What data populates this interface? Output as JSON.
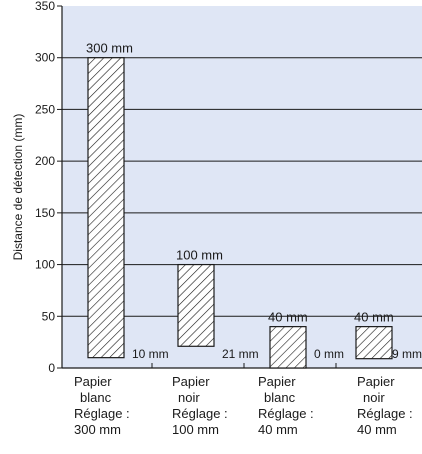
{
  "chart_data": {
    "type": "bar",
    "title": "",
    "ylabel": "Distance de détection (mm)",
    "xlabel": "",
    "ylim": [
      0,
      350
    ],
    "yticks": [
      0,
      50,
      100,
      150,
      200,
      250,
      300,
      350
    ],
    "grid": true,
    "categories": [
      [
        "Papier",
        "blanc",
        "Réglage :",
        "300 mm"
      ],
      [
        "Papier",
        "noir",
        "Réglage :",
        "100 mm"
      ],
      [
        "Papier",
        "blanc",
        "Réglage :",
        "40 mm"
      ],
      [
        "Papier",
        "noir",
        "Réglage :",
        "40 mm"
      ]
    ],
    "bars": [
      {
        "min": 10,
        "max": 300,
        "max_label": "300 mm",
        "min_label": "10 mm"
      },
      {
        "min": 21,
        "max": 100,
        "max_label": "100 mm",
        "min_label": "21 mm"
      },
      {
        "min": 0,
        "max": 40,
        "max_label": "40 mm",
        "min_label": "0 mm"
      },
      {
        "min": 9,
        "max": 40,
        "max_label": "40 mm",
        "min_label": "9 mm"
      }
    ],
    "colors": {
      "plot_background": "#dfe6f5",
      "bar_fill": "#ffffff",
      "bar_stroke": "#1a1a1a",
      "grid": "#1a1a1a"
    }
  }
}
